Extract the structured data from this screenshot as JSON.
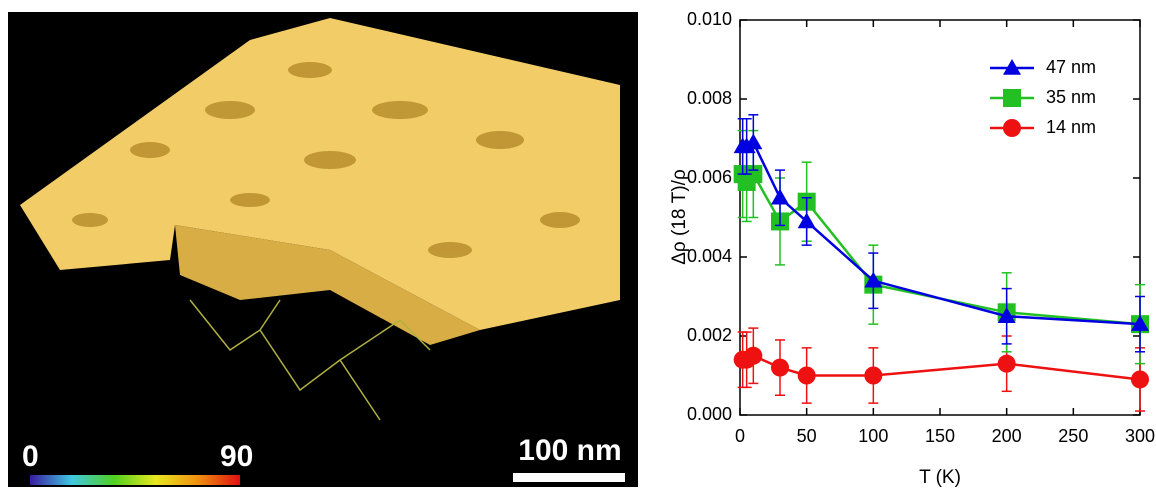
{
  "image_panel": {
    "colorbar_min": 0,
    "colorbar_max": 90,
    "scale_bar": "100 nm"
  },
  "chart_data": {
    "type": "line",
    "y_label": "Δρ (18 T)/ρ",
    "x_label": "T (K)",
    "x": [
      2,
      5,
      10,
      30,
      50,
      100,
      200,
      300
    ],
    "series": [
      {
        "name": "47 nm",
        "color": "#0000e0",
        "marker": "triangle",
        "values": [
          0.0068,
          0.0068,
          0.0069,
          0.0055,
          0.0049,
          0.0034,
          0.0025,
          0.0023
        ],
        "errors": [
          0.0007,
          0.0007,
          0.0007,
          0.0007,
          0.0006,
          0.0007,
          0.0007,
          0.0007
        ]
      },
      {
        "name": "35 nm",
        "color": "#22c022",
        "marker": "square",
        "values": [
          0.0061,
          0.0059,
          0.0061,
          0.0049,
          0.0054,
          0.0033,
          0.0026,
          0.0023
        ],
        "errors": [
          0.0011,
          0.001,
          0.0011,
          0.0011,
          0.001,
          0.001,
          0.001,
          0.001
        ]
      },
      {
        "name": "14 nm",
        "color": "#ee1111",
        "marker": "circle",
        "values": [
          0.0014,
          0.0014,
          0.0015,
          0.0012,
          0.001,
          0.001,
          0.0013,
          0.0009
        ],
        "errors": [
          0.0007,
          0.0007,
          0.0007,
          0.0007,
          0.0007,
          0.0007,
          0.0007,
          0.0008
        ]
      }
    ],
    "xlim": [
      0,
      300
    ],
    "xticks": [
      0,
      50,
      100,
      150,
      200,
      250,
      300
    ],
    "ylim": [
      0,
      0.01
    ],
    "yticks": [
      {
        "value": 0,
        "label": "0.000"
      },
      {
        "value": 0.002,
        "label": "0.002"
      },
      {
        "value": 0.004,
        "label": "0.004"
      },
      {
        "value": 0.006,
        "label": "0.006"
      },
      {
        "value": 0.008,
        "label": "0.008"
      },
      {
        "value": 0.01,
        "label": "0.010"
      }
    ],
    "legend": "upper right"
  }
}
